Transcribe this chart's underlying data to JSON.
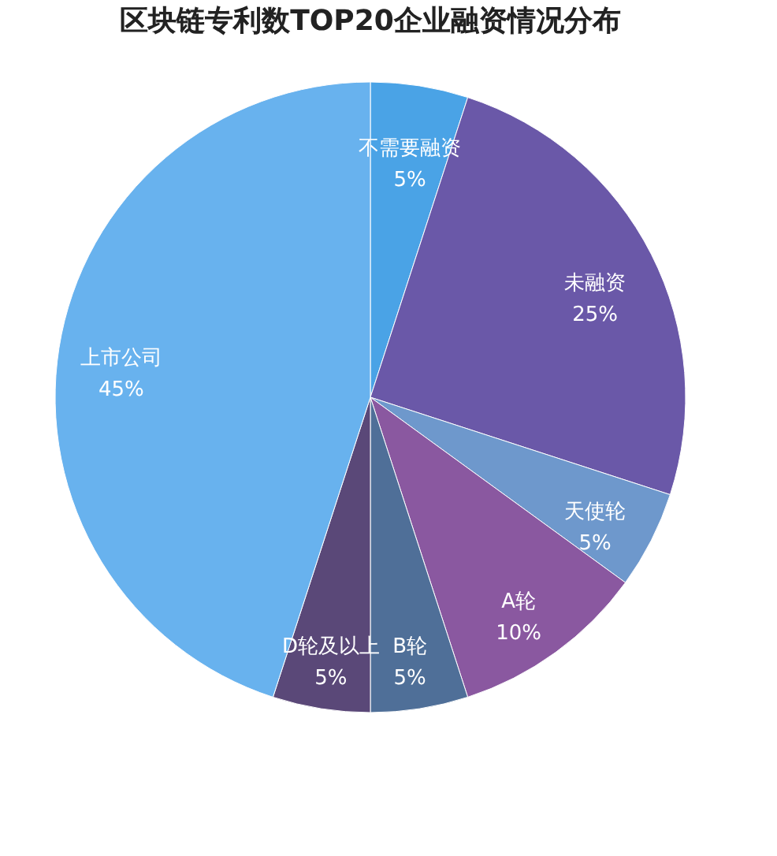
{
  "chart_data": {
    "type": "pie",
    "title": "区块链专利数TOP20企业融资情况分布",
    "categories": [
      "不需要融资",
      "未融资",
      "天使轮",
      "A轮",
      "B轮",
      "D轮及以上",
      "上市公司"
    ],
    "values": [
      5,
      25,
      5,
      10,
      5,
      5,
      45
    ],
    "value_labels": [
      "5%",
      "25%",
      "5%",
      "10%",
      "5%",
      "5%",
      "45%"
    ],
    "colors": [
      "#4aa3e6",
      "#6a58a8",
      "#6e98cc",
      "#8a58a0",
      "#4f6f98",
      "#5a4878",
      "#68b2ee"
    ],
    "legend": false
  }
}
